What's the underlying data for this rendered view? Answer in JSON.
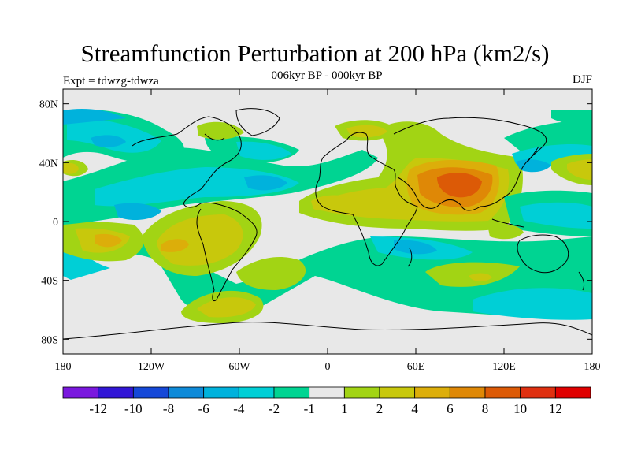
{
  "title": "Streamfunction Perturbation at 200 hPa (km2/s)",
  "subtitle": "006kyr BP - 000kyr BP",
  "left_label": "Expt = tdwzg-tdwza",
  "right_label": "DJF",
  "lat_ticks": [
    "80N",
    "40N",
    "0",
    "40S",
    "80S"
  ],
  "lon_ticks": [
    "180",
    "120W",
    "60W",
    "0",
    "60E",
    "120E",
    "180"
  ],
  "colorbar": {
    "colors": [
      "#7a18de",
      "#3216d6",
      "#1548d8",
      "#0e8ad8",
      "#00b2dc",
      "#00cfd6",
      "#00d492",
      "#e8e8e8",
      "#a2d414",
      "#c8c80c",
      "#dcae0a",
      "#df8806",
      "#dc5a06",
      "#df3010",
      "#e00000"
    ],
    "labels": [
      "-12",
      "-10",
      "-8",
      "-6",
      "-4",
      "-2",
      "-1",
      "1",
      "2",
      "4",
      "6",
      "8",
      "10",
      "12"
    ]
  }
}
